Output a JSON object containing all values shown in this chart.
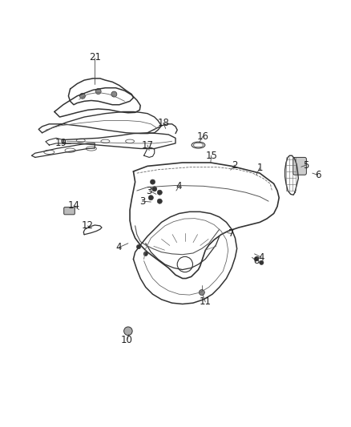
{
  "title": "",
  "background_color": "#ffffff",
  "line_color": "#333333",
  "label_color": "#222222",
  "label_fontsize": 8.5,
  "fig_width": 4.38,
  "fig_height": 5.33,
  "dpi": 100
}
